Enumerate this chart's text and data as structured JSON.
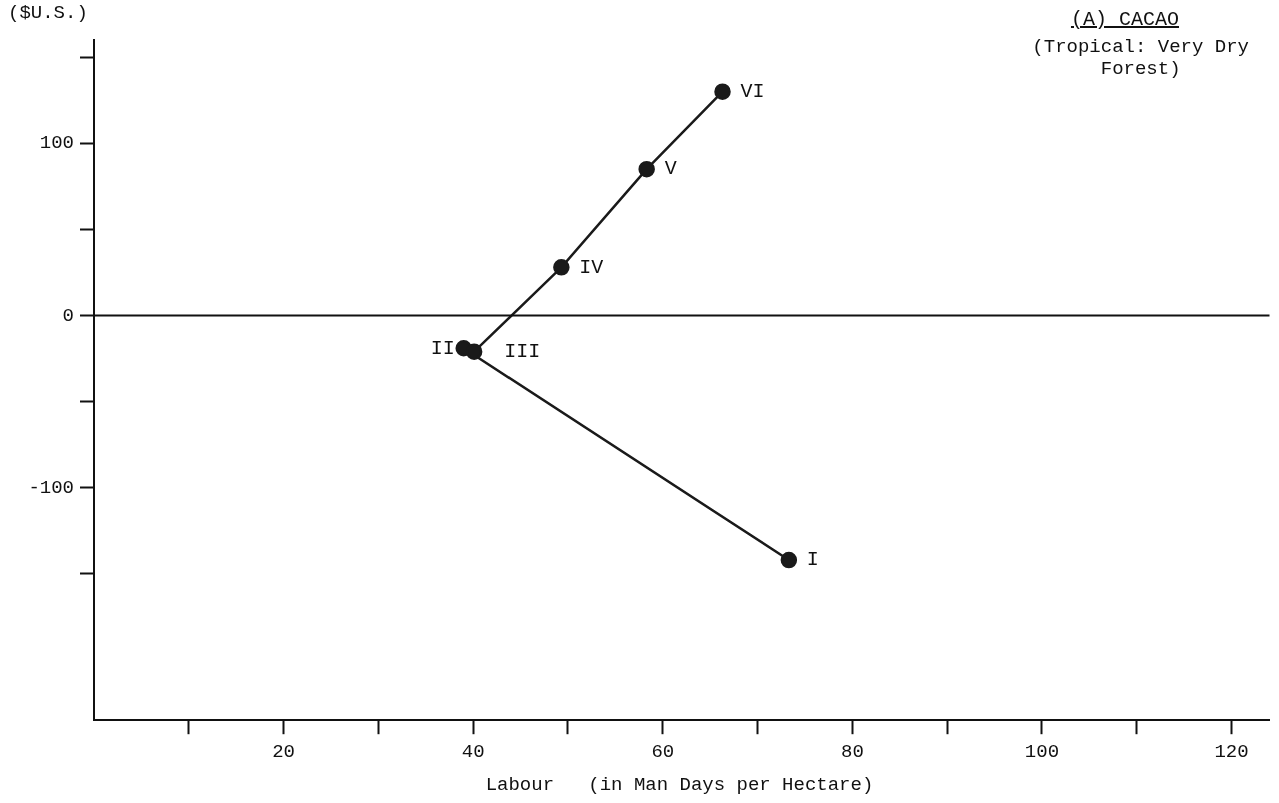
{
  "chart_data": {
    "type": "line",
    "title": "(A) CACAO",
    "subtitle": "(Tropical: Very Dry\nForest)",
    "xlabel": "Labour   (in Man Days per Hectare)",
    "ylabel": "($U.S.)",
    "series": [
      {
        "color": "#1a1a1a",
        "x": [
          73.3,
          39.0,
          40.1,
          49.3,
          58.3,
          66.3
        ],
        "values": [
          -142,
          -19,
          -21,
          28,
          85,
          130
        ]
      }
    ],
    "xlim": [
      0,
      124
    ],
    "xticks": [
      {
        "value": 10,
        "label": null
      },
      20,
      {
        "value": 30,
        "label": null
      },
      40,
      {
        "value": 50,
        "label": null
      },
      60,
      {
        "value": 70,
        "label": null
      },
      80,
      {
        "value": 90,
        "label": null
      },
      100,
      {
        "value": 110,
        "label": null
      },
      120
    ],
    "ylim": [
      -235,
      160
    ],
    "yticks": [
      {
        "value": 150,
        "label": null
      },
      100,
      {
        "value": 50,
        "label": null
      },
      0,
      {
        "value": -50,
        "label": null
      },
      -100,
      {
        "value": -150,
        "label": null
      }
    ],
    "ref_lines": [
      {
        "axis": "y",
        "value": 0
      }
    ],
    "annotations": [
      {
        "text": "I",
        "x": 73.3,
        "y": -142
      },
      {
        "text": "II",
        "x": 39.0,
        "y": -19
      },
      {
        "text": "III",
        "x": 40.1,
        "y": -21
      },
      {
        "text": "IV",
        "x": 49.3,
        "y": 28
      },
      {
        "text": "V",
        "x": 58.3,
        "y": 85
      },
      {
        "text": "VI",
        "x": 66.3,
        "y": 130
      }
    ],
    "marker": "circle",
    "line_style": "solid",
    "grid": false,
    "legend": false
  }
}
